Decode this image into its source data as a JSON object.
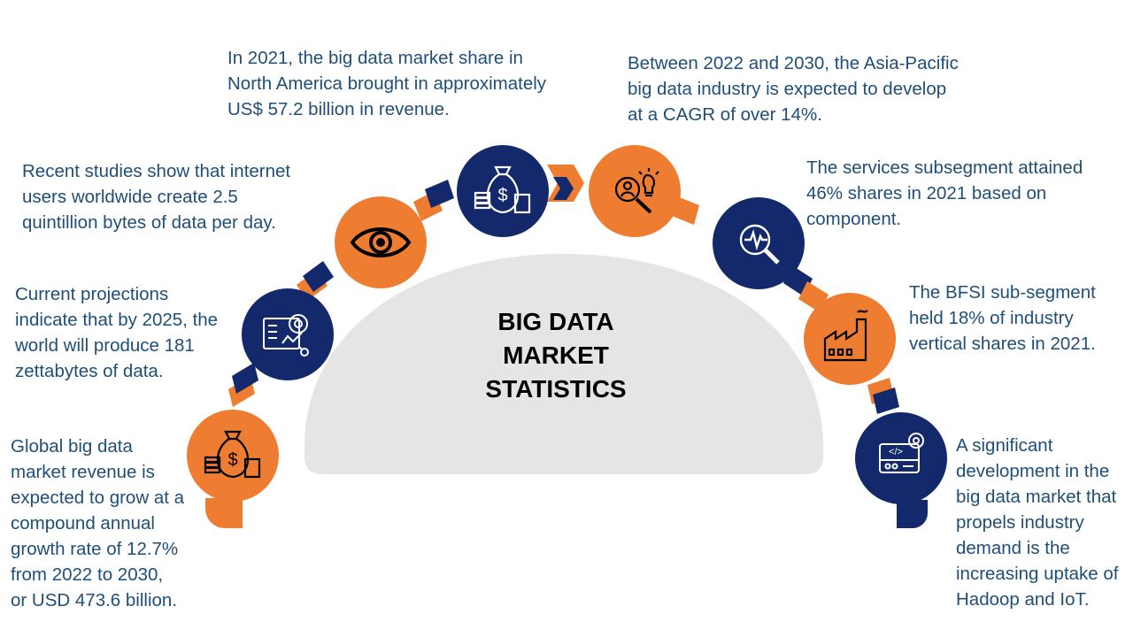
{
  "title_lines": [
    "BIG DATA",
    "MARKET",
    "STATISTICS"
  ],
  "colors": {
    "navy": "#13296b",
    "orange": "#ee7d31",
    "text": "#1f4e79",
    "dome": "#e5e5e5"
  },
  "nodes": [
    {
      "id": "revenue-growth",
      "color": "orange",
      "icon": "money-bag-icon",
      "lines": [
        "Global big data",
        "market revenue is",
        "expected to grow at a",
        "compound annual",
        "growth rate of 12.7%",
        "from 2022 to 2030,",
        "or USD 473.6 billion."
      ]
    },
    {
      "id": "zettabytes",
      "color": "navy",
      "icon": "analytics-dashboard-icon",
      "lines": [
        "Current projections",
        "indicate that by 2025, the",
        "world will produce 181",
        "zettabytes of data."
      ]
    },
    {
      "id": "quintillion",
      "color": "orange",
      "icon": "eye-icon",
      "lines": [
        "Recent studies show that internet",
        "users worldwide create 2.5",
        "quintillion bytes of data per day."
      ]
    },
    {
      "id": "north-america",
      "color": "navy",
      "icon": "money-bag-icon",
      "lines": [
        "In 2021, the big data market share in",
        "North America brought in approximately",
        "US$ 57.2 billion in revenue."
      ]
    },
    {
      "id": "asia-pacific",
      "color": "orange",
      "icon": "research-idea-icon",
      "lines": [
        "Between 2022 and 2030, the Asia-Pacific",
        "big data industry is expected to develop",
        "at a CAGR of over 14%."
      ]
    },
    {
      "id": "services",
      "color": "navy",
      "icon": "magnifier-pulse-icon",
      "lines": [
        "The services subsegment attained",
        "46% shares in 2021 based on",
        "component."
      ]
    },
    {
      "id": "bfsi",
      "color": "orange",
      "icon": "factory-icon",
      "lines": [
        "The BFSI sub-segment",
        "held 18% of industry",
        "vertical shares in 2021."
      ]
    },
    {
      "id": "hadoop",
      "color": "navy",
      "icon": "coding-settings-icon",
      "lines": [
        "A significant",
        "development in the",
        "big data market that",
        "propels industry",
        "demand is the",
        "increasing uptake of",
        "Hadoop and IoT."
      ]
    }
  ]
}
